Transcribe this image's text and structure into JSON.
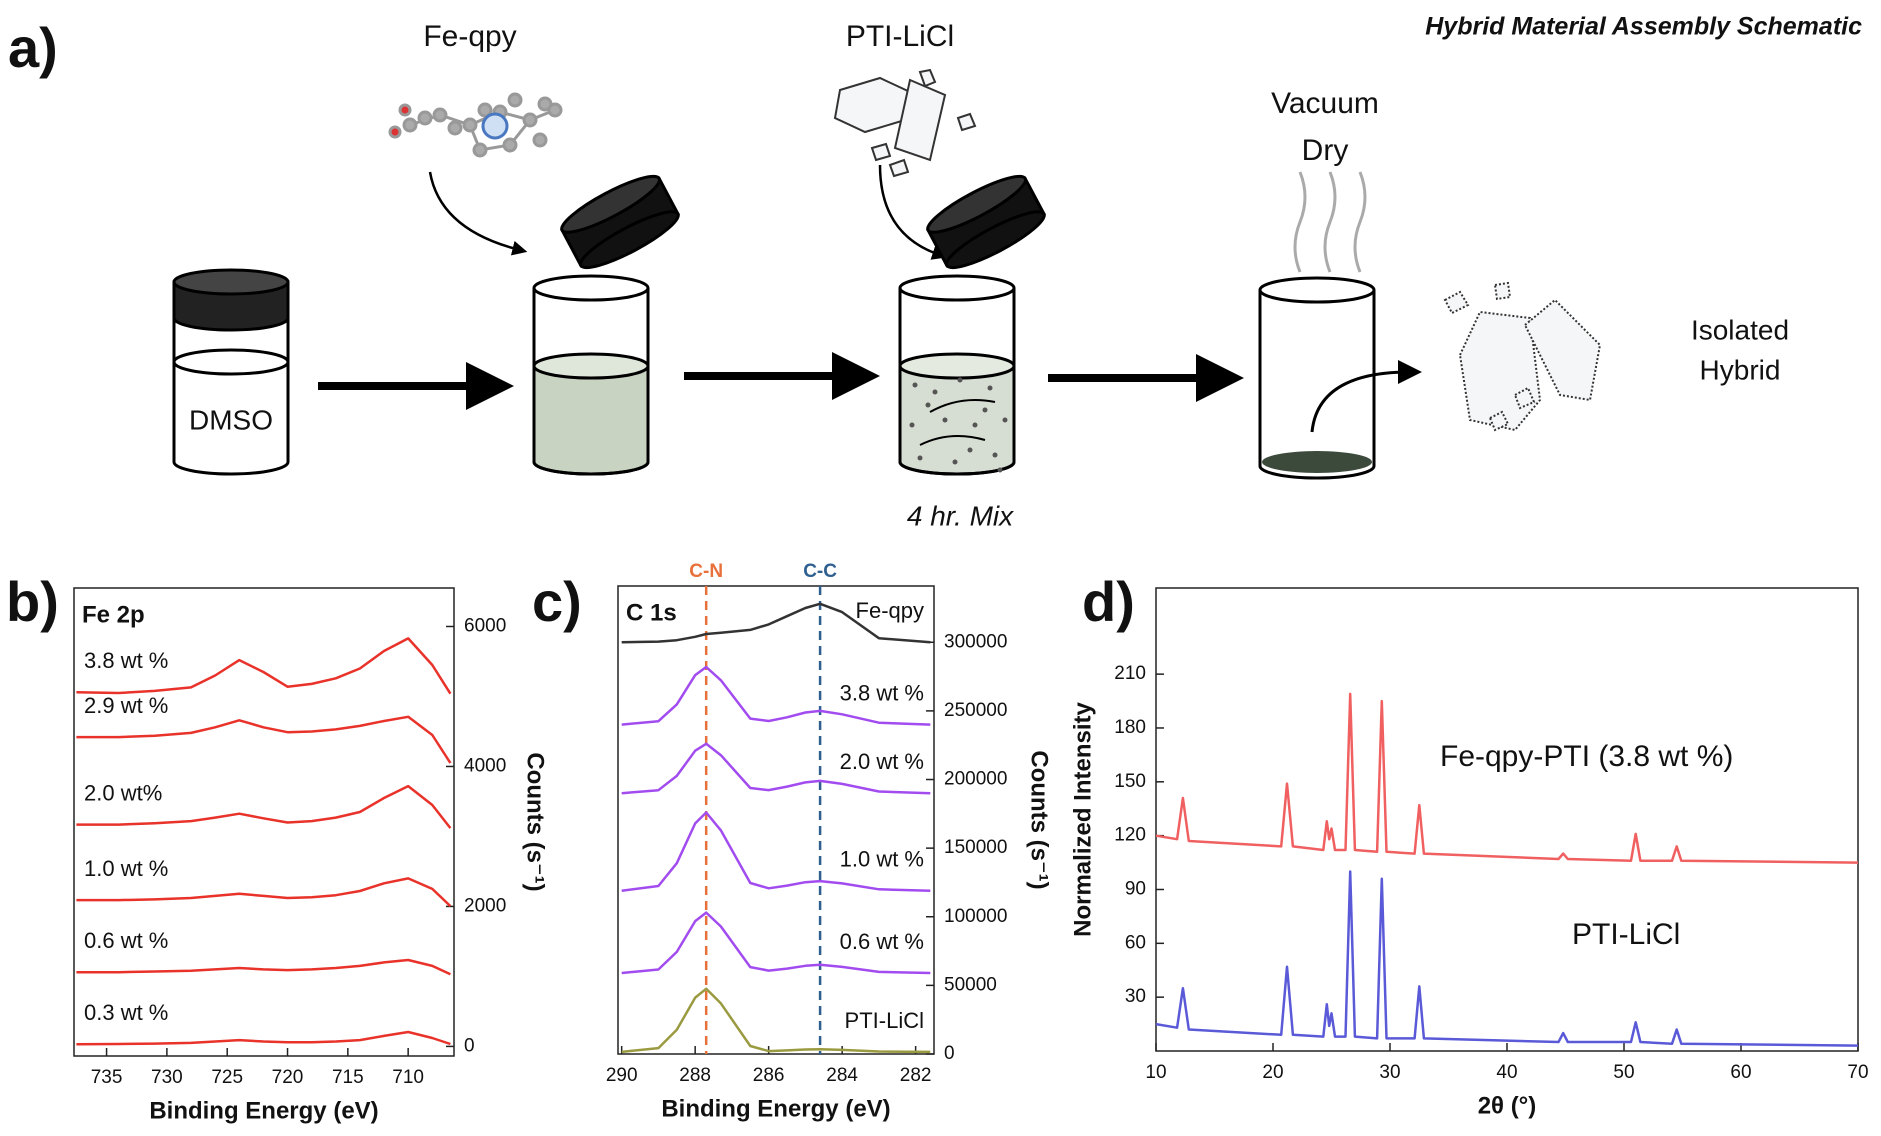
{
  "schematic": {
    "panel_label": "a)",
    "title": "Hybrid Material Assembly Schematic",
    "reagents": [
      "Fe-qpy",
      "PTI-LiCl"
    ],
    "solvent": "DMSO",
    "mix_time": "4 hr. Mix",
    "drying": [
      "Vacuum",
      "Dry"
    ],
    "product": [
      "Isolated",
      "Hybrid"
    ]
  },
  "chart_data": [
    {
      "type": "line",
      "panel_label": "b)",
      "title": "Fe 2p",
      "xlabel": "Binding Energy (eV)",
      "ylabel": "Counts (s⁻¹)",
      "y_axis_side": "right",
      "xlim": [
        737.7,
        706.2
      ],
      "xticks": [
        735,
        730,
        725,
        720,
        715,
        710
      ],
      "ylim": [
        -137,
        6550
      ],
      "yticks": [
        0,
        2000,
        4000,
        6000
      ],
      "x": [
        737.5,
        734,
        731,
        728,
        726,
        724,
        722,
        720,
        718,
        716,
        714,
        712,
        710,
        708,
        706.5
      ],
      "series": [
        {
          "name": "3.8 wt %",
          "color": "#e8322a",
          "values": [
            5060,
            5050,
            5080,
            5130,
            5300,
            5520,
            5350,
            5140,
            5180,
            5260,
            5400,
            5650,
            5830,
            5450,
            5040
          ]
        },
        {
          "name": "2.9 wt %",
          "color": "#e8322a",
          "values": [
            4420,
            4420,
            4440,
            4480,
            4560,
            4660,
            4560,
            4490,
            4500,
            4530,
            4580,
            4650,
            4710,
            4450,
            4050
          ]
        },
        {
          "name": "2.0 wt%",
          "color": "#e8322a",
          "values": [
            3170,
            3170,
            3190,
            3220,
            3270,
            3325,
            3260,
            3200,
            3220,
            3270,
            3350,
            3550,
            3720,
            3450,
            3120
          ]
        },
        {
          "name": "1.0 wt %",
          "color": "#e8322a",
          "values": [
            2090,
            2090,
            2100,
            2120,
            2150,
            2180,
            2150,
            2120,
            2130,
            2160,
            2220,
            2330,
            2400,
            2250,
            2005
          ]
        },
        {
          "name": "0.6 wt %",
          "color": "#e8322a",
          "values": [
            1060,
            1060,
            1070,
            1080,
            1100,
            1120,
            1100,
            1090,
            1100,
            1120,
            1150,
            1200,
            1234,
            1150,
            1030
          ]
        },
        {
          "name": "0.3 wt %",
          "color": "#e8322a",
          "values": [
            30,
            35,
            40,
            50,
            70,
            90,
            70,
            60,
            60,
            70,
            90,
            150,
            206,
            120,
            34
          ]
        }
      ]
    },
    {
      "type": "line",
      "panel_label": "c)",
      "title": "C 1s",
      "xlabel": "Binding Energy (eV)",
      "ylabel": "Counts (s⁻¹)",
      "y_axis_side": "right",
      "xlim": [
        290.1,
        281.5
      ],
      "xticks": [
        290,
        288,
        286,
        284,
        282
      ],
      "ylim": [
        0,
        341000
      ],
      "yticks": [
        0,
        50000,
        100000,
        150000,
        200000,
        250000,
        300000
      ],
      "markers": [
        {
          "label": "C-N",
          "x": 287.7,
          "color": "#e8703a"
        },
        {
          "label": "C-C",
          "x": 284.6,
          "color": "#2f5f8f"
        }
      ],
      "x": [
        290,
        289,
        288.5,
        288,
        287.7,
        287.3,
        286.5,
        286,
        285.5,
        285,
        284.6,
        284,
        283,
        281.6
      ],
      "series": [
        {
          "name": "Fe-qpy",
          "color": "#333333",
          "values": [
            300000,
            300500,
            301500,
            304000,
            306000,
            307000,
            309000,
            313000,
            319000,
            325000,
            328000,
            322000,
            303000,
            300000
          ]
        },
        {
          "name": "3.8 wt %",
          "color": "#a24cf0",
          "values": [
            240000,
            242500,
            254700,
            276100,
            282000,
            272300,
            244400,
            242600,
            245300,
            248800,
            250000,
            247500,
            241400,
            240000
          ]
        },
        {
          "name": "2.0 wt %",
          "color": "#a24cf0",
          "values": [
            190000,
            192200,
            202600,
            221000,
            226000,
            217700,
            193800,
            192300,
            194800,
            197900,
            199000,
            196800,
            191300,
            190000
          ]
        },
        {
          "name": "1.0 wt %",
          "color": "#a24cf0",
          "values": [
            119000,
            122400,
            139000,
            168000,
            176000,
            162900,
            124600,
            120700,
            122700,
            125200,
            126000,
            124300,
            120000,
            119000
          ]
        },
        {
          "name": "0.6 wt %",
          "color": "#a24cf0",
          "values": [
            59000,
            61600,
            74400,
            96800,
            103000,
            92900,
            63300,
            60800,
            62200,
            64300,
            65000,
            63500,
            59800,
            59000
          ]
        },
        {
          "name": "PTI-LiCl",
          "color": "#9a9a40",
          "values": [
            1500,
            4300,
            17600,
            41100,
            47500,
            36900,
            5800,
            2100,
            2600,
            3300,
            3500,
            3000,
            1800,
            1500
          ]
        }
      ]
    },
    {
      "type": "line",
      "panel_label": "d)",
      "xlabel": "2θ (°)",
      "ylabel": "Normalized Intensity",
      "y_axis_side": "left",
      "xlim": [
        10,
        70
      ],
      "xticks": [
        10,
        20,
        30,
        40,
        50,
        60,
        70
      ],
      "ylim": [
        0,
        258
      ],
      "yticks": [
        30,
        60,
        90,
        120,
        150,
        180,
        210
      ],
      "x": [
        10,
        11.8,
        12.3,
        12.8,
        20.7,
        21.2,
        21.7,
        24.3,
        24.6,
        24.8,
        25,
        25.3,
        26.2,
        26.6,
        27,
        28.9,
        29.3,
        29.7,
        32.1,
        32.5,
        32.9,
        44.4,
        44.8,
        45.2,
        50.6,
        51,
        51.4,
        54.1,
        54.5,
        54.9,
        70
      ],
      "series": [
        {
          "name": "Fe-qpy-PTI (3.8 wt %)",
          "color": "#f06060",
          "values": [
            120,
            118,
            141,
            117,
            114,
            149,
            114,
            112,
            128,
            118,
            124,
            112,
            112,
            199,
            112,
            111,
            195,
            111,
            110,
            137,
            110,
            107,
            110,
            107,
            106,
            121,
            106,
            106,
            114,
            106,
            105
          ]
        },
        {
          "name": "PTI-LiCl",
          "color": "#5a5ad8",
          "values": [
            15,
            13,
            35,
            12,
            9,
            47,
            9,
            8,
            26,
            14,
            21,
            8,
            8,
            100,
            8,
            7,
            96,
            7,
            7,
            36,
            7,
            5,
            10,
            5,
            5,
            16,
            5,
            4,
            12,
            4,
            3
          ]
        }
      ]
    }
  ]
}
